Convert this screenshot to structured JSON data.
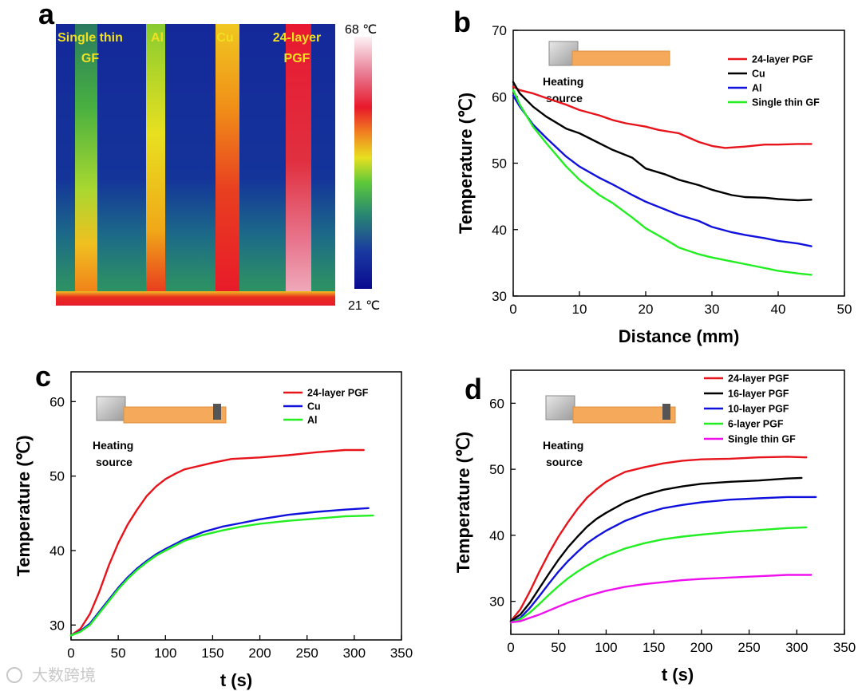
{
  "panel_labels": [
    "a",
    "b",
    "c",
    "d"
  ],
  "thermal_image": {
    "strip_labels": [
      [
        "Single thin",
        "GF"
      ],
      [
        "Al"
      ],
      [
        "Cu"
      ],
      [
        "24-layer",
        "PGF"
      ]
    ],
    "colorbar_max": "68 ℃",
    "colorbar_min": "21 ℃"
  },
  "insets": {
    "b": {
      "label_lines": [
        "Heating",
        "source"
      ]
    },
    "c": {
      "label_lines": [
        "Heating",
        "source"
      ]
    },
    "d": {
      "label_lines": [
        "Heating",
        "source"
      ]
    }
  },
  "watermark": "大数跨境",
  "colors": {
    "red": "#e8141b",
    "black": "#000000",
    "blue": "#1111dd",
    "green": "#22ee22",
    "magenta": "#ee11ee"
  },
  "chart_data": [
    {
      "panel": "b",
      "type": "line",
      "xlabel": "Distance (mm)",
      "ylabel": "Temperature (℃)",
      "xlim": [
        0,
        50
      ],
      "ylim": [
        30,
        70
      ],
      "xticks": [
        0,
        10,
        20,
        30,
        40,
        50
      ],
      "yticks": [
        30,
        40,
        50,
        60,
        70
      ],
      "legend_position": "top-right",
      "series": [
        {
          "name": "24-layer PGF",
          "color": "#e8141b",
          "x": [
            0,
            1,
            3,
            5,
            8,
            10,
            13,
            15,
            17,
            20,
            22,
            25,
            28,
            30,
            32,
            35,
            38,
            40,
            43,
            45
          ],
          "y": [
            61.5,
            61,
            60.5,
            59.8,
            58.8,
            58,
            57.2,
            56.5,
            56,
            55.5,
            55,
            54.5,
            53.2,
            52.6,
            52.3,
            52.5,
            52.8,
            52.8,
            52.9,
            52.9
          ]
        },
        {
          "name": "Cu",
          "color": "#000000",
          "x": [
            0,
            1,
            3,
            5,
            8,
            10,
            13,
            15,
            18,
            20,
            23,
            25,
            28,
            30,
            33,
            35,
            38,
            40,
            43,
            45
          ],
          "y": [
            62.2,
            60.5,
            58.5,
            57,
            55.2,
            54.5,
            53,
            52,
            50.8,
            49.2,
            48.3,
            47.5,
            46.7,
            46,
            45.2,
            44.9,
            44.8,
            44.6,
            44.4,
            44.5
          ]
        },
        {
          "name": "Al",
          "color": "#1111dd",
          "x": [
            0,
            1,
            3,
            5,
            8,
            10,
            13,
            15,
            18,
            20,
            23,
            25,
            28,
            30,
            33,
            35,
            38,
            40,
            43,
            45
          ],
          "y": [
            60.2,
            58.5,
            55.8,
            53.8,
            51,
            49.5,
            47.8,
            46.8,
            45.2,
            44.2,
            43,
            42.2,
            41.3,
            40.4,
            39.6,
            39.2,
            38.7,
            38.3,
            37.9,
            37.5
          ]
        },
        {
          "name": "Single thin GF",
          "color": "#22ee22",
          "x": [
            0,
            1,
            3,
            5,
            8,
            10,
            13,
            15,
            18,
            20,
            23,
            25,
            28,
            30,
            33,
            35,
            38,
            40,
            43,
            45
          ],
          "y": [
            61,
            58.8,
            55.5,
            53,
            49.5,
            47.5,
            45.2,
            44,
            41.8,
            40.2,
            38.5,
            37.3,
            36.3,
            35.8,
            35.2,
            34.8,
            34.2,
            33.8,
            33.4,
            33.2
          ]
        }
      ]
    },
    {
      "panel": "c",
      "type": "line",
      "xlabel": "t (s)",
      "ylabel": "Temperature (℃)",
      "xlim": [
        0,
        350
      ],
      "ylim": [
        28,
        64
      ],
      "xticks": [
        0,
        50,
        100,
        150,
        200,
        250,
        300,
        350
      ],
      "yticks": [
        30,
        40,
        50,
        60
      ],
      "legend_position": "top-right",
      "series": [
        {
          "name": "24-layer PGF",
          "color": "#e8141b",
          "x": [
            0,
            10,
            20,
            30,
            40,
            50,
            60,
            70,
            80,
            90,
            100,
            110,
            120,
            130,
            150,
            170,
            200,
            230,
            260,
            290,
            310
          ],
          "y": [
            28.6,
            29.5,
            31.5,
            34.5,
            38,
            41,
            43.5,
            45.5,
            47.3,
            48.6,
            49.6,
            50.3,
            50.9,
            51.2,
            51.8,
            52.3,
            52.5,
            52.8,
            53.2,
            53.5,
            53.5
          ]
        },
        {
          "name": "Cu",
          "color": "#1111dd",
          "x": [
            0,
            10,
            20,
            30,
            40,
            50,
            60,
            70,
            80,
            90,
            100,
            120,
            140,
            160,
            180,
            200,
            230,
            260,
            290,
            315
          ],
          "y": [
            28.6,
            29.2,
            30.2,
            31.8,
            33.4,
            35,
            36.4,
            37.6,
            38.6,
            39.5,
            40.2,
            41.5,
            42.5,
            43.2,
            43.7,
            44.2,
            44.8,
            45.2,
            45.5,
            45.7
          ]
        },
        {
          "name": "Al",
          "color": "#22ee22",
          "x": [
            0,
            10,
            20,
            30,
            40,
            50,
            60,
            70,
            80,
            90,
            100,
            120,
            140,
            160,
            180,
            200,
            230,
            260,
            290,
            320
          ],
          "y": [
            28.6,
            29.1,
            30,
            31.6,
            33.2,
            34.8,
            36.2,
            37.4,
            38.4,
            39.3,
            40,
            41.3,
            42.1,
            42.7,
            43.2,
            43.6,
            44,
            44.3,
            44.6,
            44.7
          ]
        }
      ]
    },
    {
      "panel": "d",
      "type": "line",
      "xlabel": "t (s)",
      "ylabel": "Temperature (℃)",
      "xlim": [
        0,
        350
      ],
      "ylim": [
        25,
        65
      ],
      "xticks": [
        0,
        50,
        100,
        150,
        200,
        250,
        300,
        350
      ],
      "yticks": [
        30,
        40,
        50,
        60
      ],
      "legend_position": "top-right",
      "series": [
        {
          "name": "24-layer PGF",
          "color": "#e8141b",
          "x": [
            0,
            10,
            20,
            30,
            40,
            50,
            60,
            70,
            80,
            90,
            100,
            110,
            120,
            140,
            160,
            180,
            200,
            230,
            260,
            290,
            310
          ],
          "y": [
            27,
            28.8,
            31.5,
            34.5,
            37.3,
            39.8,
            42,
            44,
            45.7,
            47,
            48.1,
            48.9,
            49.6,
            50.3,
            50.9,
            51.3,
            51.5,
            51.6,
            51.8,
            51.9,
            51.8
          ]
        },
        {
          "name": "16-layer PGF",
          "color": "#000000",
          "x": [
            0,
            10,
            20,
            30,
            40,
            50,
            60,
            70,
            80,
            90,
            100,
            120,
            140,
            160,
            180,
            200,
            230,
            260,
            290,
            305
          ],
          "y": [
            27,
            28,
            29.8,
            32,
            34.2,
            36.3,
            38.2,
            39.8,
            41.3,
            42.5,
            43.4,
            45,
            46.1,
            46.9,
            47.4,
            47.8,
            48.1,
            48.3,
            48.6,
            48.7
          ]
        },
        {
          "name": "10-layer PGF",
          "color": "#1111dd",
          "x": [
            0,
            10,
            20,
            30,
            40,
            50,
            60,
            70,
            80,
            90,
            100,
            120,
            140,
            160,
            180,
            200,
            230,
            260,
            290,
            320
          ],
          "y": [
            26.8,
            27.5,
            29,
            30.8,
            32.7,
            34.5,
            36.1,
            37.5,
            38.8,
            39.8,
            40.7,
            42.2,
            43.3,
            44.1,
            44.6,
            45,
            45.4,
            45.6,
            45.8,
            45.8
          ]
        },
        {
          "name": "6-layer PGF",
          "color": "#22ee22",
          "x": [
            0,
            10,
            20,
            30,
            40,
            50,
            60,
            70,
            80,
            90,
            100,
            120,
            140,
            160,
            180,
            200,
            230,
            260,
            290,
            310
          ],
          "y": [
            26.8,
            27.3,
            28.3,
            29.6,
            31,
            32.3,
            33.5,
            34.5,
            35.4,
            36.2,
            36.9,
            38,
            38.8,
            39.4,
            39.8,
            40.1,
            40.5,
            40.8,
            41.1,
            41.2
          ]
        },
        {
          "name": "Single thin GF",
          "color": "#ee11ee",
          "x": [
            0,
            10,
            20,
            30,
            40,
            50,
            60,
            70,
            80,
            90,
            100,
            120,
            140,
            160,
            180,
            200,
            230,
            260,
            290,
            315
          ],
          "y": [
            26.8,
            27,
            27.5,
            28,
            28.6,
            29.2,
            29.8,
            30.3,
            30.8,
            31.2,
            31.6,
            32.2,
            32.6,
            32.9,
            33.2,
            33.4,
            33.6,
            33.8,
            34,
            34
          ]
        }
      ]
    }
  ]
}
